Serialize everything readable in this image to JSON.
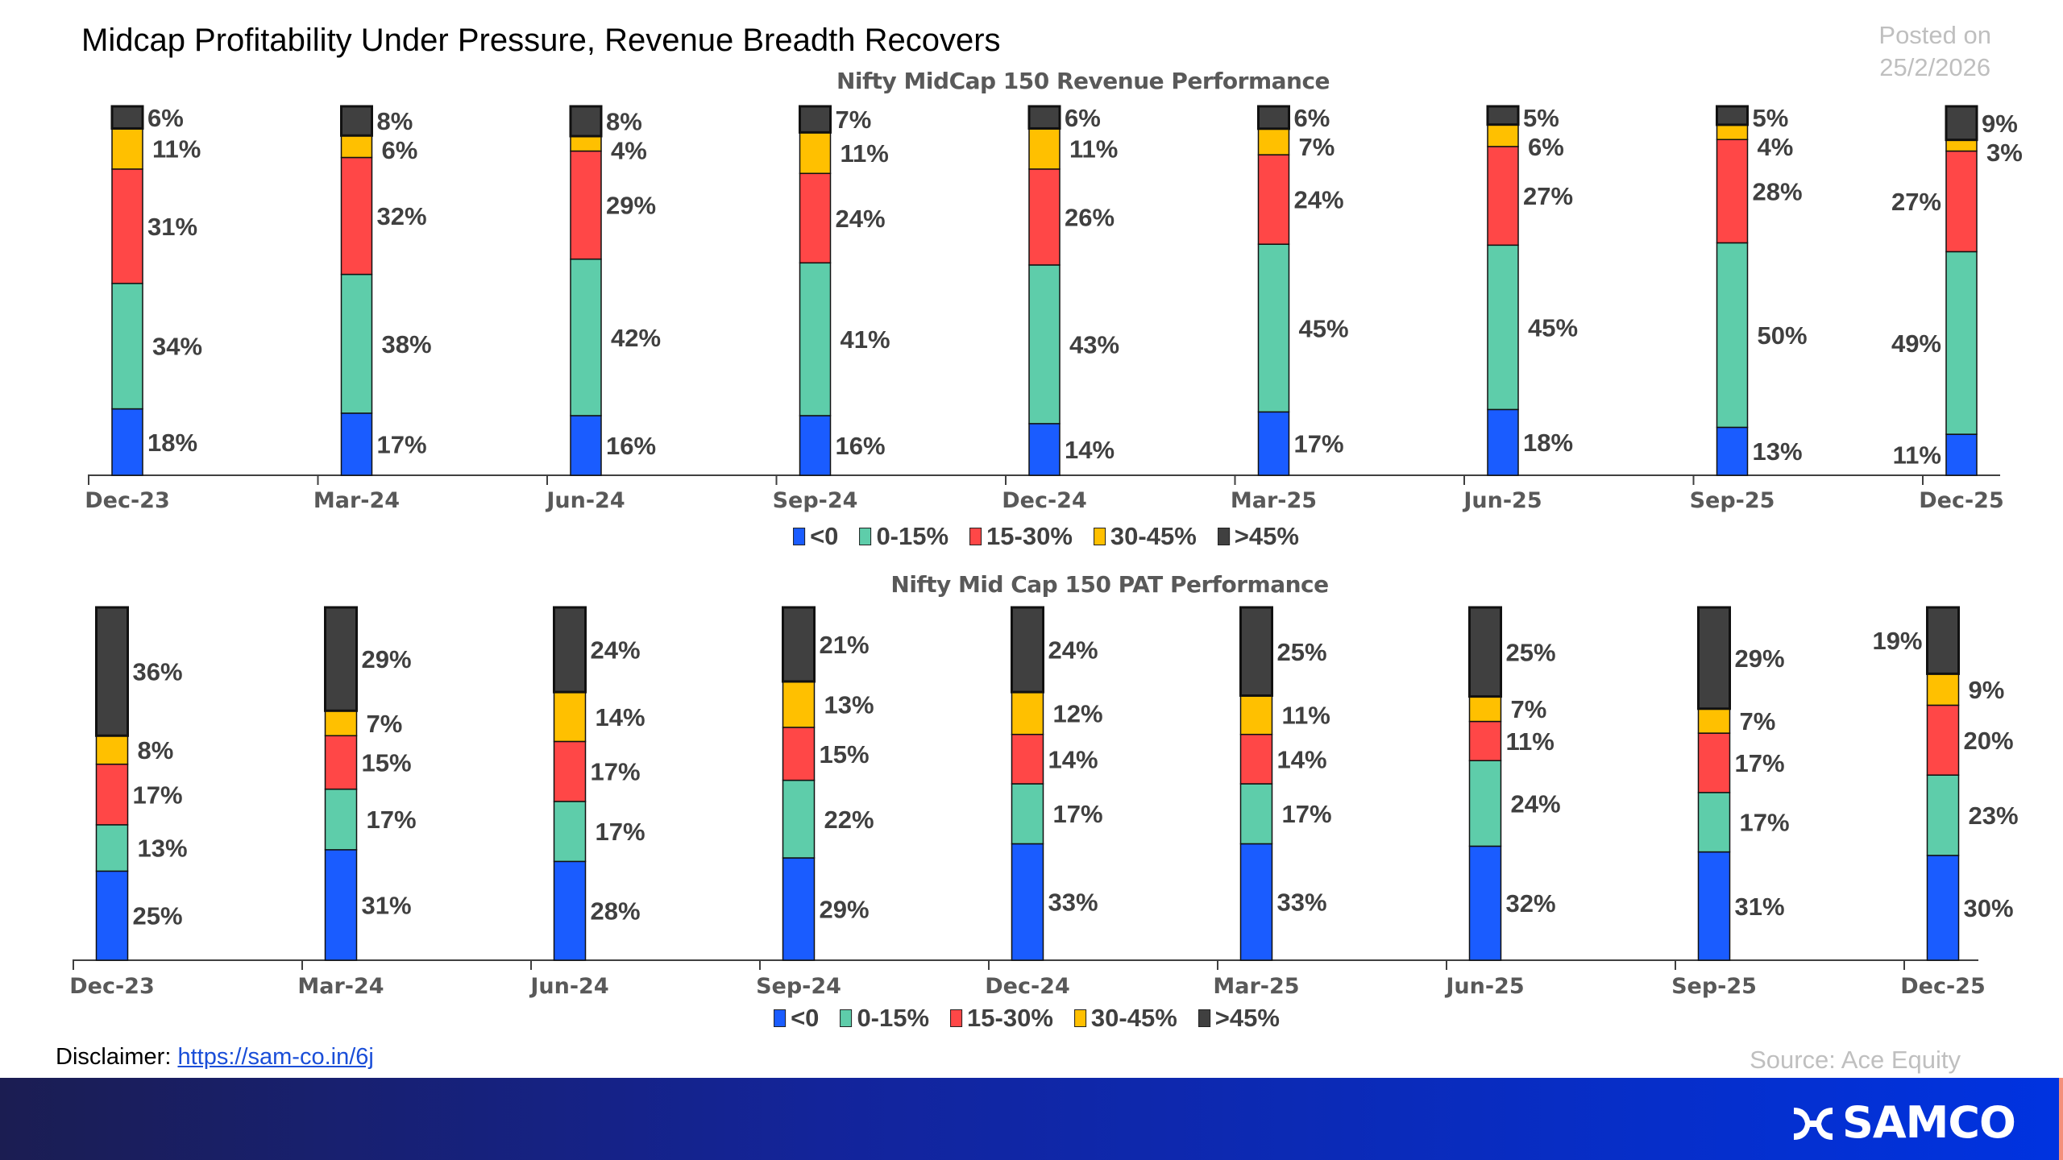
{
  "header": {
    "title": "Midcap Profitability Under Pressure, Revenue Breadth Recovers",
    "posted_label": "Posted on",
    "posted_date": "25/2/2026"
  },
  "legend": {
    "items": [
      {
        "label": "<0",
        "color": "#1a5cff"
      },
      {
        "label": "0-15%",
        "color": "#5ecdaa"
      },
      {
        "label": "15-30%",
        "color": "#ff4747"
      },
      {
        "label": "30-45%",
        "color": "#ffc000"
      },
      {
        "label": ">45%",
        "color": "#404040"
      }
    ]
  },
  "chart_data": [
    {
      "type": "bar",
      "stacked": true,
      "percent_stacked": true,
      "title": "Nifty MidCap 150 Revenue Performance",
      "categories": [
        "Dec-23",
        "Mar-24",
        "Jun-24",
        "Sep-24",
        "Dec-24",
        "Mar-25",
        "Jun-25",
        "Sep-25",
        "Dec-25"
      ],
      "legend_position": "bottom",
      "grid": false,
      "series": [
        {
          "name": "<0",
          "color": "#1a5cff",
          "values": [
            18,
            17,
            16,
            16,
            14,
            17,
            18,
            13,
            11
          ]
        },
        {
          "name": "0-15%",
          "color": "#5ecdaa",
          "values": [
            34,
            38,
            42,
            41,
            43,
            45,
            45,
            50,
            49
          ]
        },
        {
          "name": "15-30%",
          "color": "#ff4747",
          "values": [
            31,
            32,
            29,
            24,
            26,
            24,
            27,
            28,
            27
          ]
        },
        {
          "name": "30-45%",
          "color": "#ffc000",
          "values": [
            11,
            6,
            4,
            11,
            11,
            7,
            6,
            4,
            3
          ]
        },
        {
          "name": ">45%",
          "color": "#404040",
          "values": [
            6,
            8,
            8,
            7,
            6,
            6,
            5,
            5,
            9
          ]
        }
      ]
    },
    {
      "type": "bar",
      "stacked": true,
      "percent_stacked": true,
      "title": "Nifty Mid Cap 150  PAT Performance",
      "categories": [
        "Dec-23",
        "Mar-24",
        "Jun-24",
        "Sep-24",
        "Dec-24",
        "Mar-25",
        "Jun-25",
        "Sep-25",
        "Dec-25"
      ],
      "legend_position": "bottom",
      "grid": false,
      "series": [
        {
          "name": "<0",
          "color": "#1a5cff",
          "values": [
            25,
            31,
            28,
            29,
            33,
            33,
            32,
            31,
            30
          ]
        },
        {
          "name": "0-15%",
          "color": "#5ecdaa",
          "values": [
            13,
            17,
            17,
            22,
            17,
            17,
            24,
            17,
            23
          ]
        },
        {
          "name": "15-30%",
          "color": "#ff4747",
          "values": [
            17,
            15,
            17,
            15,
            14,
            14,
            11,
            17,
            20
          ]
        },
        {
          "name": "30-45%",
          "color": "#ffc000",
          "values": [
            8,
            7,
            14,
            13,
            12,
            11,
            7,
            7,
            9
          ]
        },
        {
          "name": ">45%",
          "color": "#404040",
          "values": [
            36,
            29,
            24,
            21,
            24,
            25,
            25,
            29,
            19
          ]
        }
      ]
    }
  ],
  "footer": {
    "disclaimer_label": "Disclaimer: ",
    "disclaimer_link": "https://sam-co.in/6j",
    "source": "Source: Ace Equity",
    "logo_text": "SAMCO"
  }
}
